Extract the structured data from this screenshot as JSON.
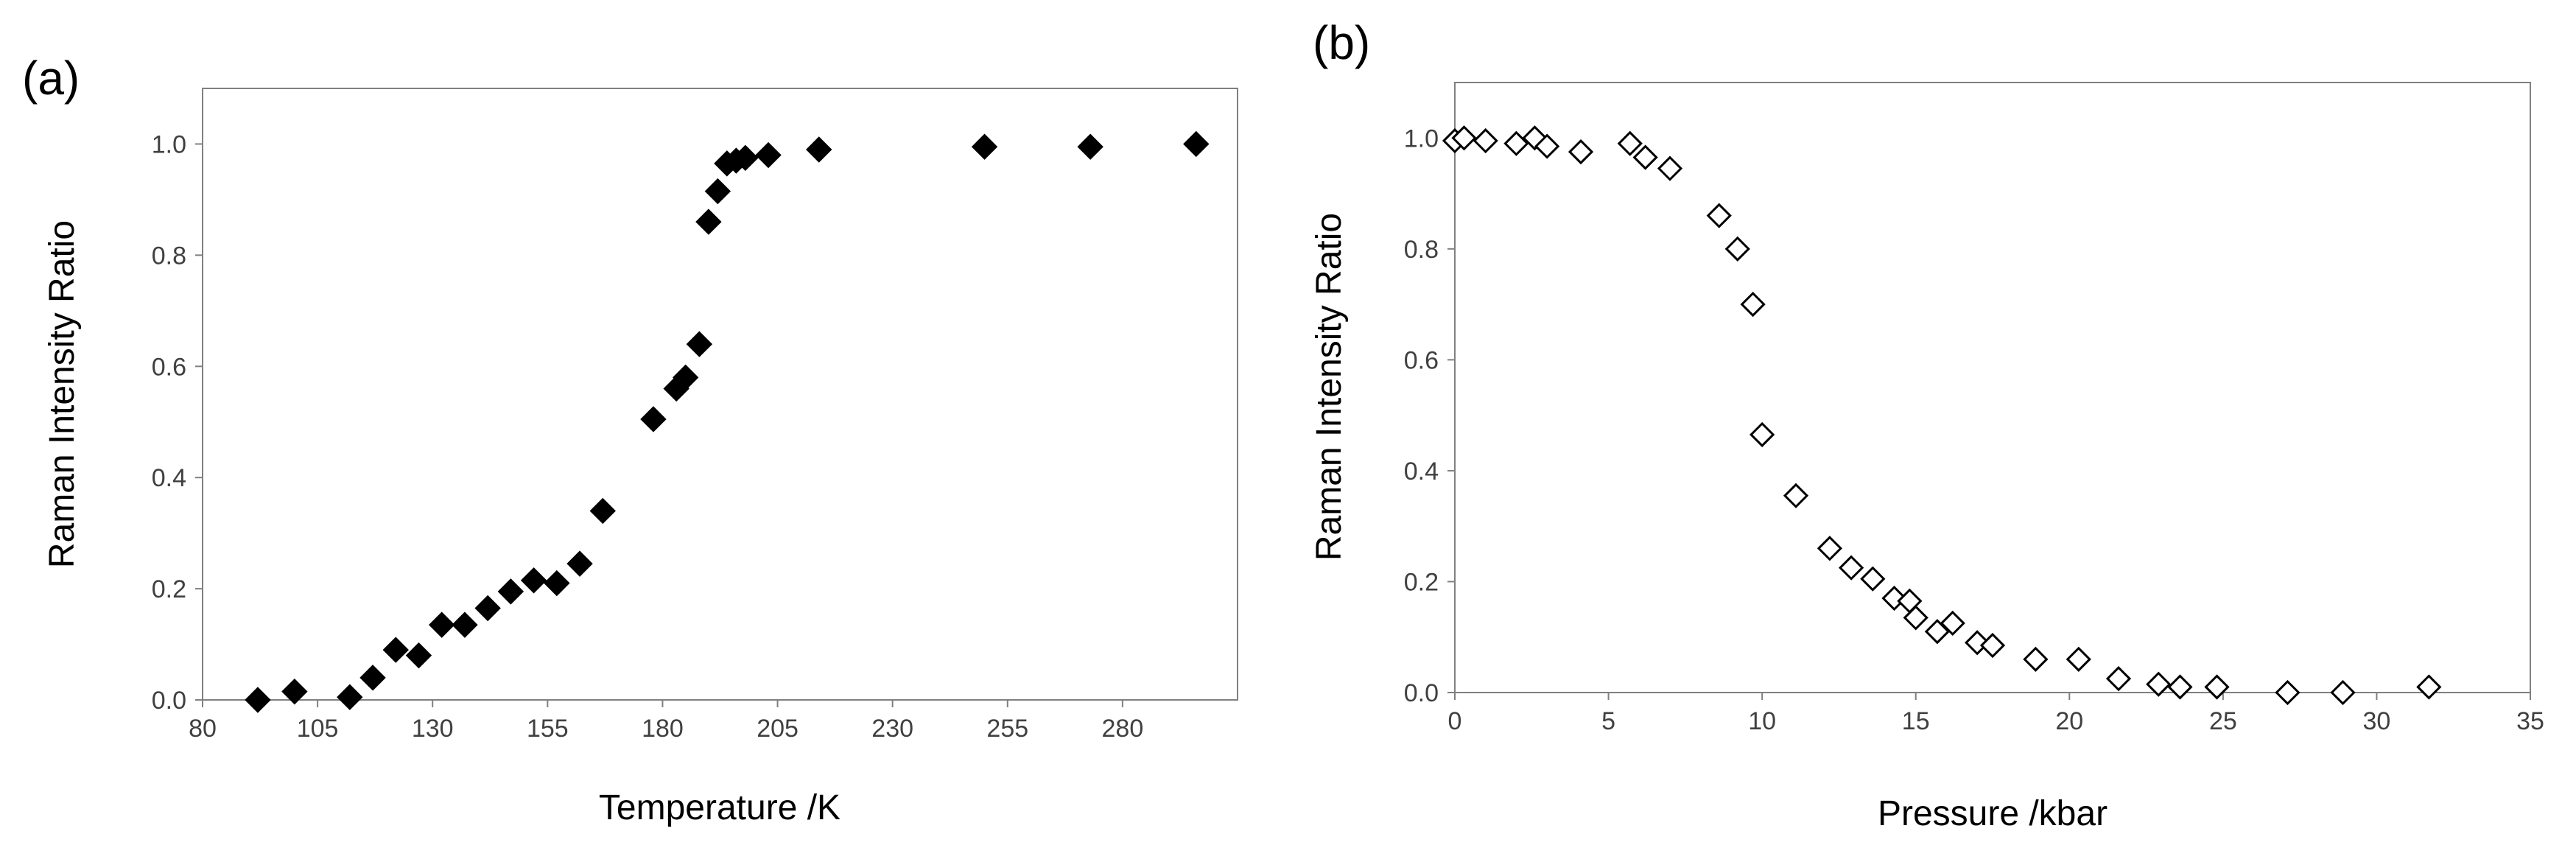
{
  "chart_data": [
    {
      "type": "scatter",
      "panel_label": "(a)",
      "xlabel": "Temperature /K",
      "ylabel": "Raman Intensity Ratio",
      "xlim": [
        80,
        305
      ],
      "ylim": [
        0,
        1.1
      ],
      "xticks": [
        "80",
        "105",
        "130",
        "155",
        "180",
        "205",
        "230",
        "255",
        "280"
      ],
      "yticks": [
        "0.0",
        "0.2",
        "0.4",
        "0.6",
        "0.8",
        "1.0"
      ],
      "marker": "filled-diamond",
      "color": "#000000",
      "grid": false,
      "series": [
        {
          "points": [
            [
              92,
              0.0
            ],
            [
              100,
              0.015
            ],
            [
              112,
              0.005
            ],
            [
              117,
              0.04
            ],
            [
              122,
              0.09
            ],
            [
              127,
              0.08
            ],
            [
              132,
              0.135
            ],
            [
              137,
              0.135
            ],
            [
              142,
              0.165
            ],
            [
              147,
              0.195
            ],
            [
              152,
              0.215
            ],
            [
              157,
              0.21
            ],
            [
              162,
              0.245
            ],
            [
              167,
              0.34
            ],
            [
              178,
              0.505
            ],
            [
              183,
              0.56
            ],
            [
              185,
              0.58
            ],
            [
              188,
              0.64
            ],
            [
              190,
              0.86
            ],
            [
              192,
              0.915
            ],
            [
              194,
              0.965
            ],
            [
              196,
              0.97
            ],
            [
              198,
              0.975
            ],
            [
              203,
              0.98
            ],
            [
              214,
              0.99
            ],
            [
              250,
              0.995
            ],
            [
              273,
              0.995
            ],
            [
              296,
              1.0
            ]
          ]
        }
      ]
    },
    {
      "type": "scatter",
      "panel_label": "(b)",
      "xlabel": "Pressure /kbar",
      "ylabel": "Raman Intensity Ratio",
      "xlim": [
        0,
        35
      ],
      "ylim": [
        0,
        1.1
      ],
      "xticks": [
        "0",
        "5",
        "10",
        "15",
        "20",
        "25",
        "30",
        "35"
      ],
      "yticks": [
        "0.0",
        "0.2",
        "0.4",
        "0.6",
        "0.8",
        "1.0"
      ],
      "marker": "open-diamond",
      "color": "#000000",
      "grid": false,
      "series": [
        {
          "points": [
            [
              0.0,
              0.995
            ],
            [
              0.3,
              1.0
            ],
            [
              1.0,
              0.995
            ],
            [
              2.0,
              0.99
            ],
            [
              2.6,
              1.0
            ],
            [
              3.0,
              0.985
            ],
            [
              4.1,
              0.975
            ],
            [
              5.7,
              0.99
            ],
            [
              6.2,
              0.965
            ],
            [
              7.0,
              0.945
            ],
            [
              8.6,
              0.86
            ],
            [
              9.2,
              0.8
            ],
            [
              9.7,
              0.7
            ],
            [
              10.0,
              0.465
            ],
            [
              11.1,
              0.355
            ],
            [
              12.2,
              0.26
            ],
            [
              12.9,
              0.225
            ],
            [
              13.6,
              0.205
            ],
            [
              14.3,
              0.17
            ],
            [
              14.8,
              0.165
            ],
            [
              15.0,
              0.135
            ],
            [
              15.7,
              0.11
            ],
            [
              16.2,
              0.125
            ],
            [
              17.0,
              0.09
            ],
            [
              17.5,
              0.085
            ],
            [
              18.9,
              0.06
            ],
            [
              20.3,
              0.06
            ],
            [
              21.6,
              0.025
            ],
            [
              22.9,
              0.015
            ],
            [
              23.6,
              0.01
            ],
            [
              24.8,
              0.01
            ],
            [
              27.1,
              0.0
            ],
            [
              28.9,
              0.0
            ],
            [
              31.7,
              0.01
            ]
          ]
        }
      ]
    }
  ]
}
